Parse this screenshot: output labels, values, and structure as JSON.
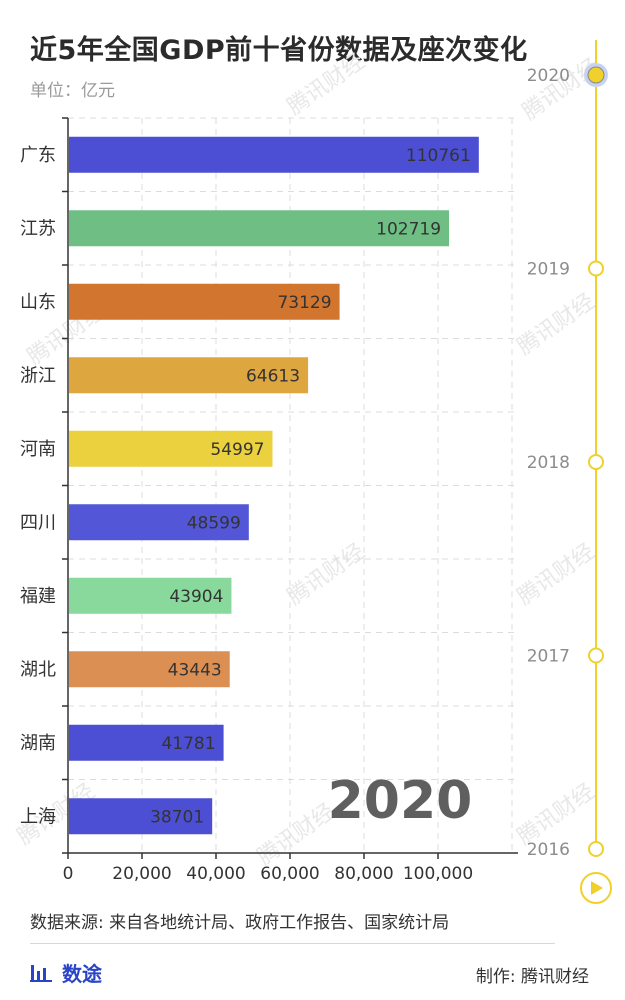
{
  "header": {
    "title": "近5年全国GDP前十省份数据及座次变化",
    "unit": "单位：亿元"
  },
  "chart_data": {
    "type": "bar",
    "orientation": "horizontal",
    "current_year": "2020",
    "categories": [
      "广东",
      "江苏",
      "山东",
      "浙江",
      "河南",
      "四川",
      "福建",
      "湖北",
      "湖南",
      "上海"
    ],
    "values": [
      110761,
      102719,
      73129,
      64613,
      54997,
      48599,
      43904,
      43443,
      41781,
      38701
    ],
    "colors": [
      "#4c4fd3",
      "#6fbf85",
      "#d2752e",
      "#dea63f",
      "#ecd13e",
      "#5356d6",
      "#88d99b",
      "#dc8f52",
      "#4c4fd3",
      "#4c4fd3"
    ],
    "xlim": [
      0,
      120000
    ],
    "xticks": [
      "0",
      "20,000",
      "40,000",
      "60,000",
      "80,000",
      "100,000"
    ],
    "xtick_values": [
      0,
      20000,
      40000,
      60000,
      80000,
      100000
    ],
    "grid": true
  },
  "timeline": {
    "years": [
      "2020",
      "2019",
      "2018",
      "2017",
      "2016"
    ],
    "active": "2020",
    "play_icon": "play-icon",
    "color": "#f0d02c"
  },
  "watermark_text": "腾讯财经",
  "footer": {
    "source": "数据来源: 来自各地统计局、政府工作报告、国家统计局",
    "brand": "数途",
    "brand_icon": "bar-chart-icon",
    "credit": "制作: 腾讯财经"
  }
}
